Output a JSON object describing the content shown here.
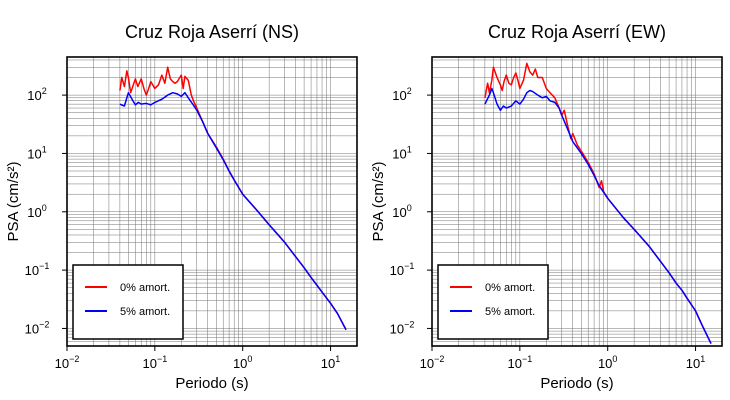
{
  "figure": {
    "colors": {
      "undamped": "#ff0000",
      "damped": "#0000ff",
      "grid": "#000000",
      "text": "#000000"
    }
  },
  "chart_data": [
    {
      "type": "line",
      "title": "Cruz Roja Aserrí (NS)",
      "xlabel": "Periodo (s)",
      "ylabel": "PSA (cm/s²)",
      "x_scale": "log",
      "y_scale": "log",
      "xlim": [
        0.01,
        20
      ],
      "ylim": [
        0.005,
        450
      ],
      "x_ticks": [
        {
          "value": 0.01,
          "base": "10",
          "exp": "−2"
        },
        {
          "value": 0.1,
          "base": "10",
          "exp": "−1"
        },
        {
          "value": 1,
          "base": "10",
          "exp": "0"
        },
        {
          "value": 10,
          "base": "10",
          "exp": "1"
        }
      ],
      "y_ticks": [
        {
          "value": 0.01,
          "base": "10",
          "exp": "−2"
        },
        {
          "value": 0.1,
          "base": "10",
          "exp": "−1"
        },
        {
          "value": 1,
          "base": "10",
          "exp": "0"
        },
        {
          "value": 10,
          "base": "10",
          "exp": "1"
        },
        {
          "value": 100,
          "base": "10",
          "exp": "2"
        }
      ],
      "grid": true,
      "legend_position": "bottom-left",
      "series": [
        {
          "name": "0% amort.",
          "color": "#ff0000",
          "points": [
            [
              0.04,
              120
            ],
            [
              0.042,
              200
            ],
            [
              0.045,
              140
            ],
            [
              0.048,
              260
            ],
            [
              0.05,
              200
            ],
            [
              0.053,
              110
            ],
            [
              0.056,
              140
            ],
            [
              0.06,
              190
            ],
            [
              0.064,
              140
            ],
            [
              0.07,
              190
            ],
            [
              0.075,
              130
            ],
            [
              0.08,
              100
            ],
            [
              0.085,
              130
            ],
            [
              0.09,
              170
            ],
            [
              0.1,
              130
            ],
            [
              0.11,
              150
            ],
            [
              0.12,
              220
            ],
            [
              0.13,
              160
            ],
            [
              0.14,
              300
            ],
            [
              0.15,
              190
            ],
            [
              0.16,
              170
            ],
            [
              0.17,
              160
            ],
            [
              0.18,
              170
            ],
            [
              0.2,
              220
            ],
            [
              0.21,
              130
            ],
            [
              0.22,
              210
            ],
            [
              0.24,
              180
            ],
            [
              0.26,
              100
            ],
            [
              0.28,
              75
            ],
            [
              0.3,
              60
            ],
            [
              0.35,
              35
            ],
            [
              0.4,
              22
            ],
            [
              0.5,
              13
            ],
            [
              0.6,
              8
            ],
            [
              0.7,
              5
            ],
            [
              0.8,
              3.5
            ],
            [
              1,
              2
            ],
            [
              1.5,
              1
            ],
            [
              2,
              0.6
            ],
            [
              3,
              0.3
            ],
            [
              4,
              0.17
            ],
            [
              5,
              0.11
            ],
            [
              6,
              0.075
            ],
            [
              7,
              0.055
            ],
            [
              8,
              0.042
            ],
            [
              10,
              0.027
            ],
            [
              12,
              0.018
            ],
            [
              15,
              0.0095
            ]
          ]
        },
        {
          "name": "5% amort.",
          "color": "#0000ff",
          "points": [
            [
              0.04,
              70
            ],
            [
              0.045,
              65
            ],
            [
              0.048,
              90
            ],
            [
              0.05,
              110
            ],
            [
              0.055,
              85
            ],
            [
              0.06,
              68
            ],
            [
              0.065,
              75
            ],
            [
              0.07,
              70
            ],
            [
              0.08,
              72
            ],
            [
              0.09,
              68
            ],
            [
              0.1,
              75
            ],
            [
              0.12,
              85
            ],
            [
              0.14,
              100
            ],
            [
              0.16,
              110
            ],
            [
              0.18,
              105
            ],
            [
              0.2,
              95
            ],
            [
              0.22,
              110
            ],
            [
              0.24,
              90
            ],
            [
              0.27,
              70
            ],
            [
              0.3,
              55
            ],
            [
              0.35,
              35
            ],
            [
              0.4,
              22
            ],
            [
              0.5,
              12.5
            ],
            [
              0.6,
              7.8
            ],
            [
              0.7,
              5
            ],
            [
              0.8,
              3.5
            ],
            [
              1,
              2
            ],
            [
              1.5,
              1
            ],
            [
              2,
              0.6
            ],
            [
              3,
              0.3
            ],
            [
              4,
              0.17
            ],
            [
              5,
              0.11
            ],
            [
              6,
              0.075
            ],
            [
              7,
              0.055
            ],
            [
              8,
              0.042
            ],
            [
              10,
              0.027
            ],
            [
              12,
              0.018
            ],
            [
              15,
              0.0095
            ]
          ]
        }
      ]
    },
    {
      "type": "line",
      "title": "Cruz Roja Aserrí (EW)",
      "xlabel": "Periodo (s)",
      "ylabel": "PSA (cm/s²)",
      "x_scale": "log",
      "y_scale": "log",
      "xlim": [
        0.01,
        20
      ],
      "ylim": [
        0.005,
        450
      ],
      "x_ticks": [
        {
          "value": 0.01,
          "base": "10",
          "exp": "−2"
        },
        {
          "value": 0.1,
          "base": "10",
          "exp": "−1"
        },
        {
          "value": 1,
          "base": "10",
          "exp": "0"
        },
        {
          "value": 10,
          "base": "10",
          "exp": "1"
        }
      ],
      "y_ticks": [
        {
          "value": 0.01,
          "base": "10",
          "exp": "−2"
        },
        {
          "value": 0.1,
          "base": "10",
          "exp": "−1"
        },
        {
          "value": 1,
          "base": "10",
          "exp": "0"
        },
        {
          "value": 10,
          "base": "10",
          "exp": "1"
        },
        {
          "value": 100,
          "base": "10",
          "exp": "2"
        }
      ],
      "grid": true,
      "legend_position": "bottom-left",
      "series": [
        {
          "name": "0% amort.",
          "color": "#ff0000",
          "points": [
            [
              0.04,
              90
            ],
            [
              0.043,
              160
            ],
            [
              0.045,
              110
            ],
            [
              0.048,
              180
            ],
            [
              0.05,
              300
            ],
            [
              0.055,
              200
            ],
            [
              0.06,
              150
            ],
            [
              0.063,
              120
            ],
            [
              0.066,
              170
            ],
            [
              0.07,
              220
            ],
            [
              0.075,
              160
            ],
            [
              0.08,
              150
            ],
            [
              0.085,
              200
            ],
            [
              0.09,
              240
            ],
            [
              0.095,
              180
            ],
            [
              0.1,
              130
            ],
            [
              0.11,
              180
            ],
            [
              0.12,
              350
            ],
            [
              0.13,
              250
            ],
            [
              0.14,
              220
            ],
            [
              0.15,
              280
            ],
            [
              0.16,
              200
            ],
            [
              0.18,
              200
            ],
            [
              0.2,
              130
            ],
            [
              0.22,
              110
            ],
            [
              0.25,
              90
            ],
            [
              0.28,
              60
            ],
            [
              0.3,
              45
            ],
            [
              0.32,
              55
            ],
            [
              0.35,
              30
            ],
            [
              0.38,
              18
            ],
            [
              0.4,
              22
            ],
            [
              0.45,
              14
            ],
            [
              0.5,
              11
            ],
            [
              0.6,
              7
            ],
            [
              0.7,
              4.5
            ],
            [
              0.8,
              2.6
            ],
            [
              0.85,
              3.4
            ],
            [
              0.9,
              2.2
            ],
            [
              1,
              1.7
            ],
            [
              1.5,
              0.8
            ],
            [
              2,
              0.5
            ],
            [
              3,
              0.25
            ],
            [
              4,
              0.14
            ],
            [
              5,
              0.09
            ],
            [
              6,
              0.06
            ],
            [
              7,
              0.045
            ],
            [
              8,
              0.033
            ],
            [
              10,
              0.02
            ],
            [
              12,
              0.011
            ],
            [
              15,
              0.0055
            ]
          ]
        },
        {
          "name": "5% amort.",
          "color": "#0000ff",
          "points": [
            [
              0.04,
              70
            ],
            [
              0.045,
              100
            ],
            [
              0.048,
              130
            ],
            [
              0.05,
              110
            ],
            [
              0.055,
              70
            ],
            [
              0.06,
              55
            ],
            [
              0.065,
              65
            ],
            [
              0.07,
              60
            ],
            [
              0.08,
              65
            ],
            [
              0.09,
              80
            ],
            [
              0.1,
              70
            ],
            [
              0.11,
              85
            ],
            [
              0.12,
              110
            ],
            [
              0.13,
              120
            ],
            [
              0.14,
              115
            ],
            [
              0.16,
              100
            ],
            [
              0.18,
              90
            ],
            [
              0.2,
              95
            ],
            [
              0.22,
              80
            ],
            [
              0.25,
              75
            ],
            [
              0.28,
              60
            ],
            [
              0.3,
              45
            ],
            [
              0.35,
              26
            ],
            [
              0.4,
              16
            ],
            [
              0.5,
              10
            ],
            [
              0.6,
              6.5
            ],
            [
              0.7,
              4.2
            ],
            [
              0.8,
              2.8
            ],
            [
              1,
              1.7
            ],
            [
              1.5,
              0.8
            ],
            [
              2,
              0.5
            ],
            [
              3,
              0.25
            ],
            [
              4,
              0.14
            ],
            [
              5,
              0.09
            ],
            [
              6,
              0.06
            ],
            [
              7,
              0.045
            ],
            [
              8,
              0.033
            ],
            [
              10,
              0.02
            ],
            [
              12,
              0.011
            ],
            [
              15,
              0.0055
            ]
          ]
        }
      ]
    }
  ]
}
